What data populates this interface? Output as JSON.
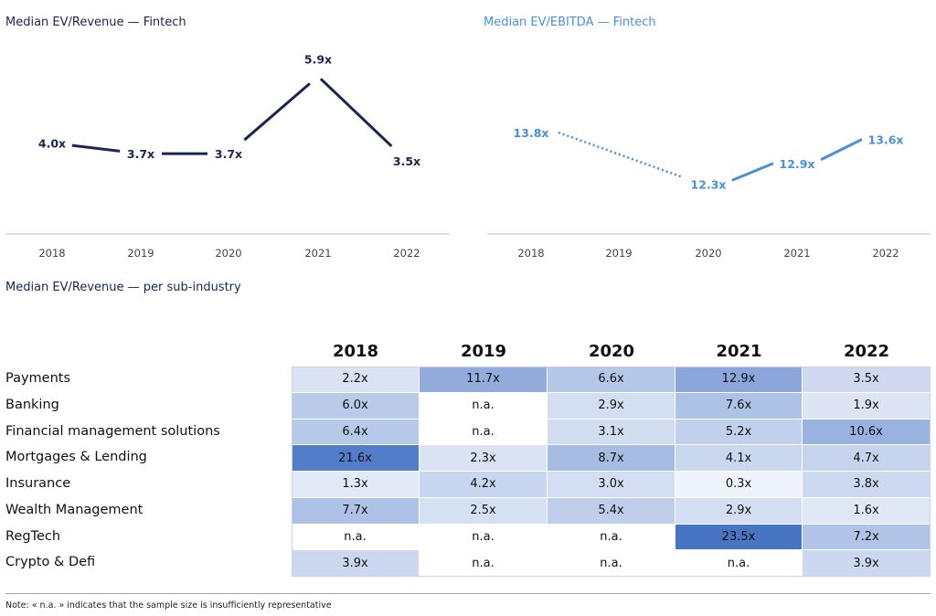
{
  "chart_data": [
    {
      "type": "line",
      "title": "Median EV/Revenue — Fintech",
      "x": [
        "2018",
        "2019",
        "2020",
        "2021",
        "2022"
      ],
      "series": [
        {
          "values": [
            4.0,
            3.7,
            3.7,
            5.9,
            3.5
          ],
          "labels": [
            "4.0x",
            "3.7x",
            "3.7x",
            "5.9x",
            "3.5x"
          ]
        }
      ],
      "color": "#1b2550",
      "grid": false
    },
    {
      "type": "line",
      "title": "Median EV/EBITDA — Fintech",
      "x": [
        "2018",
        "2019",
        "2020",
        "2021",
        "2022"
      ],
      "series": [
        {
          "values": [
            13.8,
            null,
            12.3,
            12.9,
            13.6
          ],
          "labels": [
            "13.8x",
            "",
            "12.3x",
            "12.9x",
            "13.6x"
          ]
        }
      ],
      "color": "#4a90d9",
      "grid": false
    },
    {
      "type": "heatmap",
      "title": "Median EV/Revenue — per sub-industry",
      "columns": [
        "2018",
        "2019",
        "2020",
        "2021",
        "2022"
      ],
      "rows": [
        {
          "name": "Payments",
          "values": [
            "2.2x",
            "11.7x",
            "6.6x",
            "12.9x",
            "3.5x"
          ]
        },
        {
          "name": "Banking",
          "values": [
            "6.0x",
            "n.a.",
            "2.9x",
            "7.6x",
            "1.9x"
          ]
        },
        {
          "name": "Financial management solutions",
          "values": [
            "6.4x",
            "n.a.",
            "3.1x",
            "5.2x",
            "10.6x"
          ]
        },
        {
          "name": "Mortgages & Lending",
          "values": [
            "21.6x",
            "2.3x",
            "8.7x",
            "4.1x",
            "4.7x"
          ]
        },
        {
          "name": "Insurance",
          "values": [
            "1.3x",
            "4.2x",
            "3.0x",
            "0.3x",
            "3.8x"
          ]
        },
        {
          "name": "Wealth Management",
          "values": [
            "7.7x",
            "2.5x",
            "5.4x",
            "2.9x",
            "1.6x"
          ]
        },
        {
          "name": "RegTech",
          "values": [
            "n.a.",
            "n.a.",
            "n.a.",
            "23.5x",
            "7.2x"
          ]
        },
        {
          "name": "Crypto & Defi",
          "values": [
            "3.9x",
            "n.a.",
            "n.a.",
            "n.a.",
            "3.9x"
          ]
        }
      ]
    }
  ],
  "note": "Note: « n.a. » indicates that the sample size is insufficiently representative"
}
